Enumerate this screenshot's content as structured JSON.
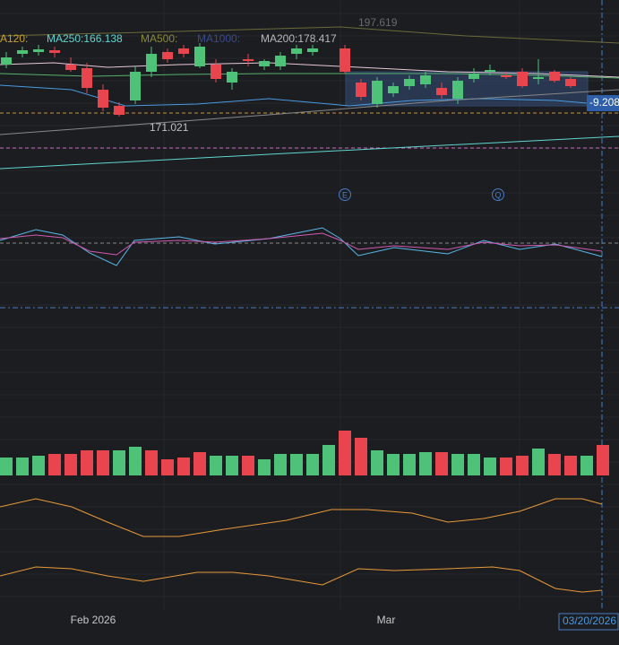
{
  "legend": {
    "ma120": "A120:",
    "ma250": "MA250:166.138",
    "ma500": "MA500:",
    "ma1000": "MA1000:",
    "ma200": "MA200:178.417"
  },
  "price_labels": {
    "high": "197.619",
    "low": "171.021",
    "current": "-9.208"
  },
  "events": [
    "E",
    "Q"
  ],
  "time_axis": {
    "labels": [
      "Feb 2026",
      "Mar"
    ],
    "cursor": "03/20/2026"
  }
}
